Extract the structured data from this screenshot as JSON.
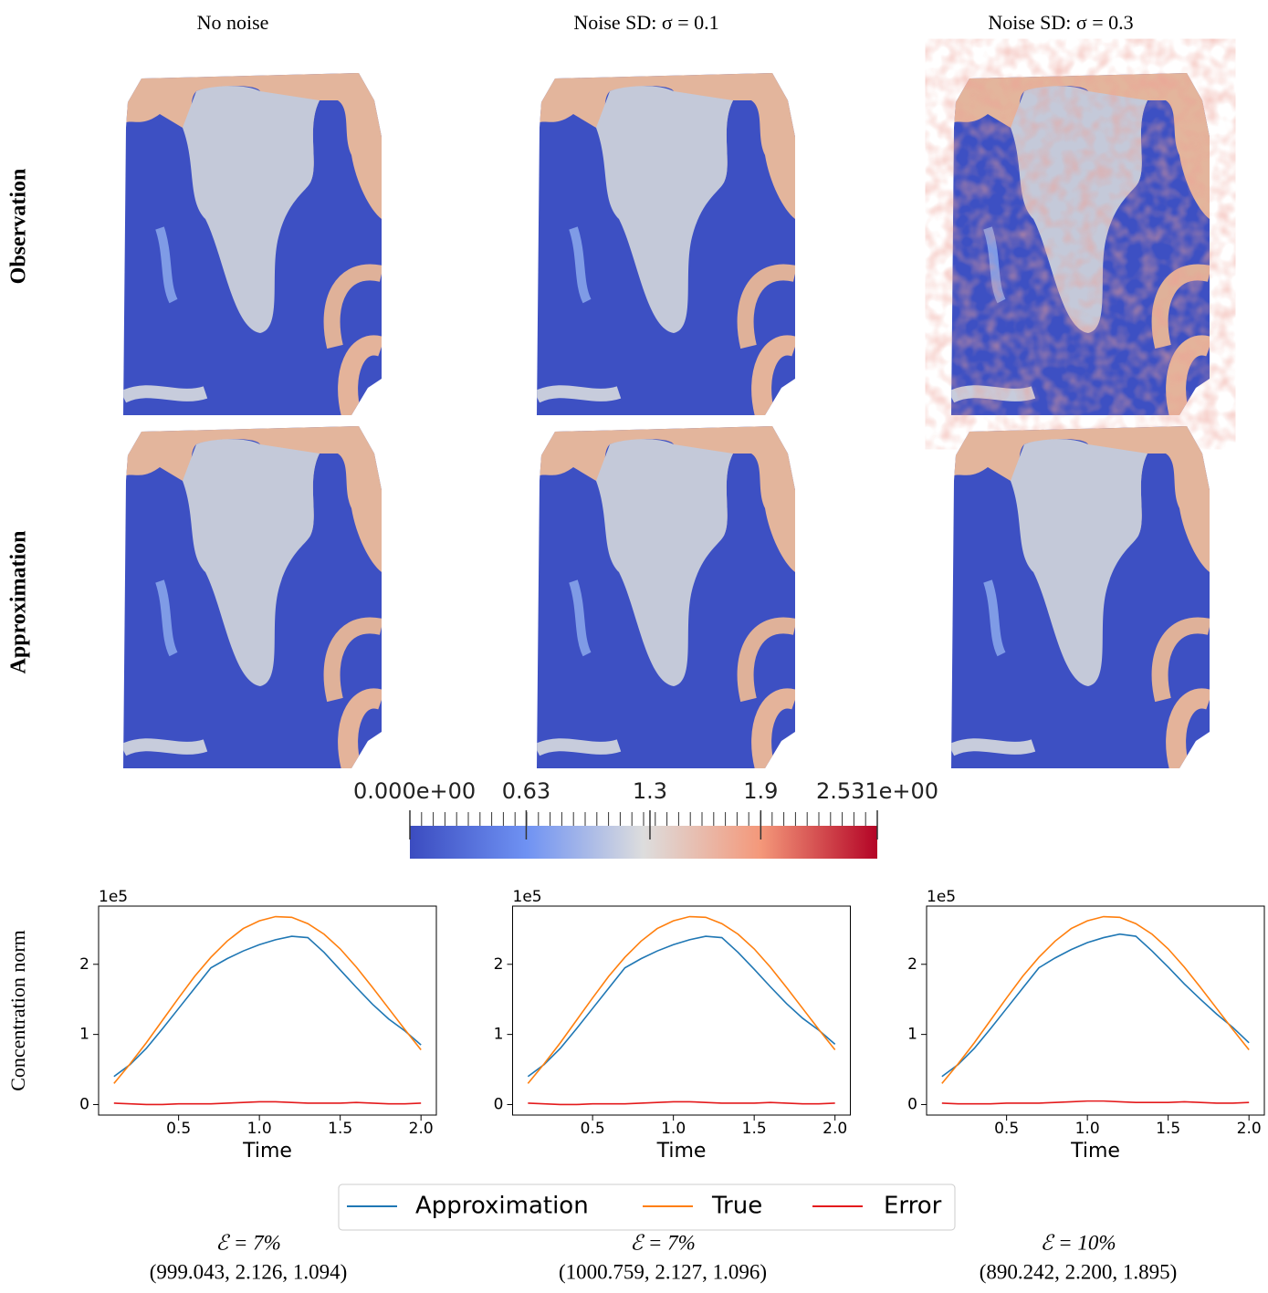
{
  "columns": [
    {
      "title": "No noise",
      "error": "ℰ = 7%",
      "params": "(999.043, 2.126, 1.094)"
    },
    {
      "title": "Noise SD: σ = 0.1",
      "error": "ℰ = 7%",
      "params": "(1000.759, 2.127, 1.096)"
    },
    {
      "title": "Noise SD: σ = 0.3",
      "error": "ℰ = 10%",
      "params": "(890.242, 2.200, 1.895)"
    }
  ],
  "rows": [
    "Observation",
    "Approximation"
  ],
  "colorbar": {
    "lim": [
      0,
      2.531
    ],
    "ticks": [
      {
        "value": 0,
        "label": "0.000e+00"
      },
      0.63,
      1.3,
      1.9,
      {
        "value": 2.531,
        "label": "2.531e+00"
      }
    ],
    "colors": [
      "#3b4cc0",
      "#6f92f3",
      "#dddddd",
      "#f4987a",
      "#b40426"
    ]
  },
  "chart_data": [
    {
      "type": "line",
      "ylabel": "Concentration norm",
      "xlabel": "Time",
      "y_offset_label": "1e5",
      "x": [
        0.1,
        0.2,
        0.3,
        0.4,
        0.5,
        0.6,
        0.7,
        0.8,
        0.9,
        1.0,
        1.1,
        1.2,
        1.3,
        1.4,
        1.5,
        1.6,
        1.7,
        1.8,
        1.9,
        2.0
      ],
      "xlim": [
        0.005,
        2.095
      ],
      "xticks": [
        0.5,
        {
          "value": 1.0,
          "label": "1.0"
        },
        1.5,
        {
          "value": 2.0,
          "label": "2.0"
        }
      ],
      "ylim": [
        -0.15,
        2.83
      ],
      "yticks": [
        0,
        1,
        2
      ],
      "series": [
        {
          "name": "Approximation",
          "color": "#1f77b4",
          "values": [
            0.4,
            0.57,
            0.8,
            1.08,
            1.37,
            1.66,
            1.95,
            2.08,
            2.19,
            2.28,
            2.35,
            2.4,
            2.38,
            2.17,
            1.92,
            1.67,
            1.43,
            1.22,
            1.05,
            0.85
          ]
        },
        {
          "name": "True",
          "color": "#ff7f0e",
          "values": [
            0.3,
            0.58,
            0.88,
            1.2,
            1.52,
            1.83,
            2.1,
            2.33,
            2.51,
            2.62,
            2.68,
            2.67,
            2.58,
            2.43,
            2.22,
            1.96,
            1.67,
            1.37,
            1.07,
            0.78
          ]
        },
        {
          "name": "Error",
          "color": "#e41a1c",
          "values": [
            0.02,
            0.01,
            0.0,
            0.0,
            0.01,
            0.01,
            0.01,
            0.02,
            0.03,
            0.04,
            0.04,
            0.03,
            0.02,
            0.02,
            0.02,
            0.03,
            0.02,
            0.01,
            0.01,
            0.02
          ]
        }
      ]
    },
    {
      "type": "line",
      "xlabel": "Time",
      "y_offset_label": "1e5",
      "x": [
        0.1,
        0.2,
        0.3,
        0.4,
        0.5,
        0.6,
        0.7,
        0.8,
        0.9,
        1.0,
        1.1,
        1.2,
        1.3,
        1.4,
        1.5,
        1.6,
        1.7,
        1.8,
        1.9,
        2.0
      ],
      "xlim": [
        0.005,
        2.095
      ],
      "xticks": [
        0.5,
        {
          "value": 1.0,
          "label": "1.0"
        },
        1.5,
        {
          "value": 2.0,
          "label": "2.0"
        }
      ],
      "ylim": [
        -0.15,
        2.83
      ],
      "yticks": [
        0,
        1,
        2
      ],
      "series": [
        {
          "name": "Approximation",
          "color": "#1f77b4",
          "values": [
            0.4,
            0.57,
            0.8,
            1.08,
            1.37,
            1.66,
            1.95,
            2.08,
            2.19,
            2.28,
            2.35,
            2.4,
            2.38,
            2.17,
            1.93,
            1.68,
            1.44,
            1.23,
            1.06,
            0.86
          ]
        },
        {
          "name": "True",
          "color": "#ff7f0e",
          "values": [
            0.3,
            0.58,
            0.88,
            1.2,
            1.52,
            1.83,
            2.1,
            2.33,
            2.51,
            2.62,
            2.68,
            2.67,
            2.58,
            2.43,
            2.22,
            1.96,
            1.67,
            1.37,
            1.07,
            0.78
          ]
        },
        {
          "name": "Error",
          "color": "#e41a1c",
          "values": [
            0.02,
            0.01,
            0.0,
            0.0,
            0.01,
            0.01,
            0.01,
            0.02,
            0.03,
            0.04,
            0.04,
            0.03,
            0.02,
            0.02,
            0.02,
            0.03,
            0.02,
            0.01,
            0.01,
            0.02
          ]
        }
      ]
    },
    {
      "type": "line",
      "xlabel": "Time",
      "y_offset_label": "1e5",
      "x": [
        0.1,
        0.2,
        0.3,
        0.4,
        0.5,
        0.6,
        0.7,
        0.8,
        0.9,
        1.0,
        1.1,
        1.2,
        1.3,
        1.4,
        1.5,
        1.6,
        1.7,
        1.8,
        1.9,
        2.0
      ],
      "xlim": [
        0.005,
        2.095
      ],
      "xticks": [
        0.5,
        {
          "value": 1.0,
          "label": "1.0"
        },
        1.5,
        {
          "value": 2.0,
          "label": "2.0"
        }
      ],
      "ylim": [
        -0.15,
        2.83
      ],
      "yticks": [
        0,
        1,
        2
      ],
      "series": [
        {
          "name": "Approximation",
          "color": "#1f77b4",
          "values": [
            0.4,
            0.57,
            0.8,
            1.08,
            1.37,
            1.66,
            1.95,
            2.09,
            2.21,
            2.31,
            2.38,
            2.43,
            2.4,
            2.19,
            1.96,
            1.72,
            1.5,
            1.29,
            1.1,
            0.88
          ]
        },
        {
          "name": "True",
          "color": "#ff7f0e",
          "values": [
            0.3,
            0.58,
            0.88,
            1.2,
            1.52,
            1.83,
            2.1,
            2.33,
            2.51,
            2.62,
            2.68,
            2.67,
            2.58,
            2.43,
            2.22,
            1.96,
            1.67,
            1.37,
            1.07,
            0.78
          ]
        },
        {
          "name": "Error",
          "color": "#e41a1c",
          "values": [
            0.02,
            0.01,
            0.01,
            0.01,
            0.02,
            0.02,
            0.02,
            0.03,
            0.04,
            0.05,
            0.05,
            0.04,
            0.03,
            0.03,
            0.03,
            0.04,
            0.03,
            0.02,
            0.02,
            0.03
          ]
        }
      ]
    }
  ]
}
